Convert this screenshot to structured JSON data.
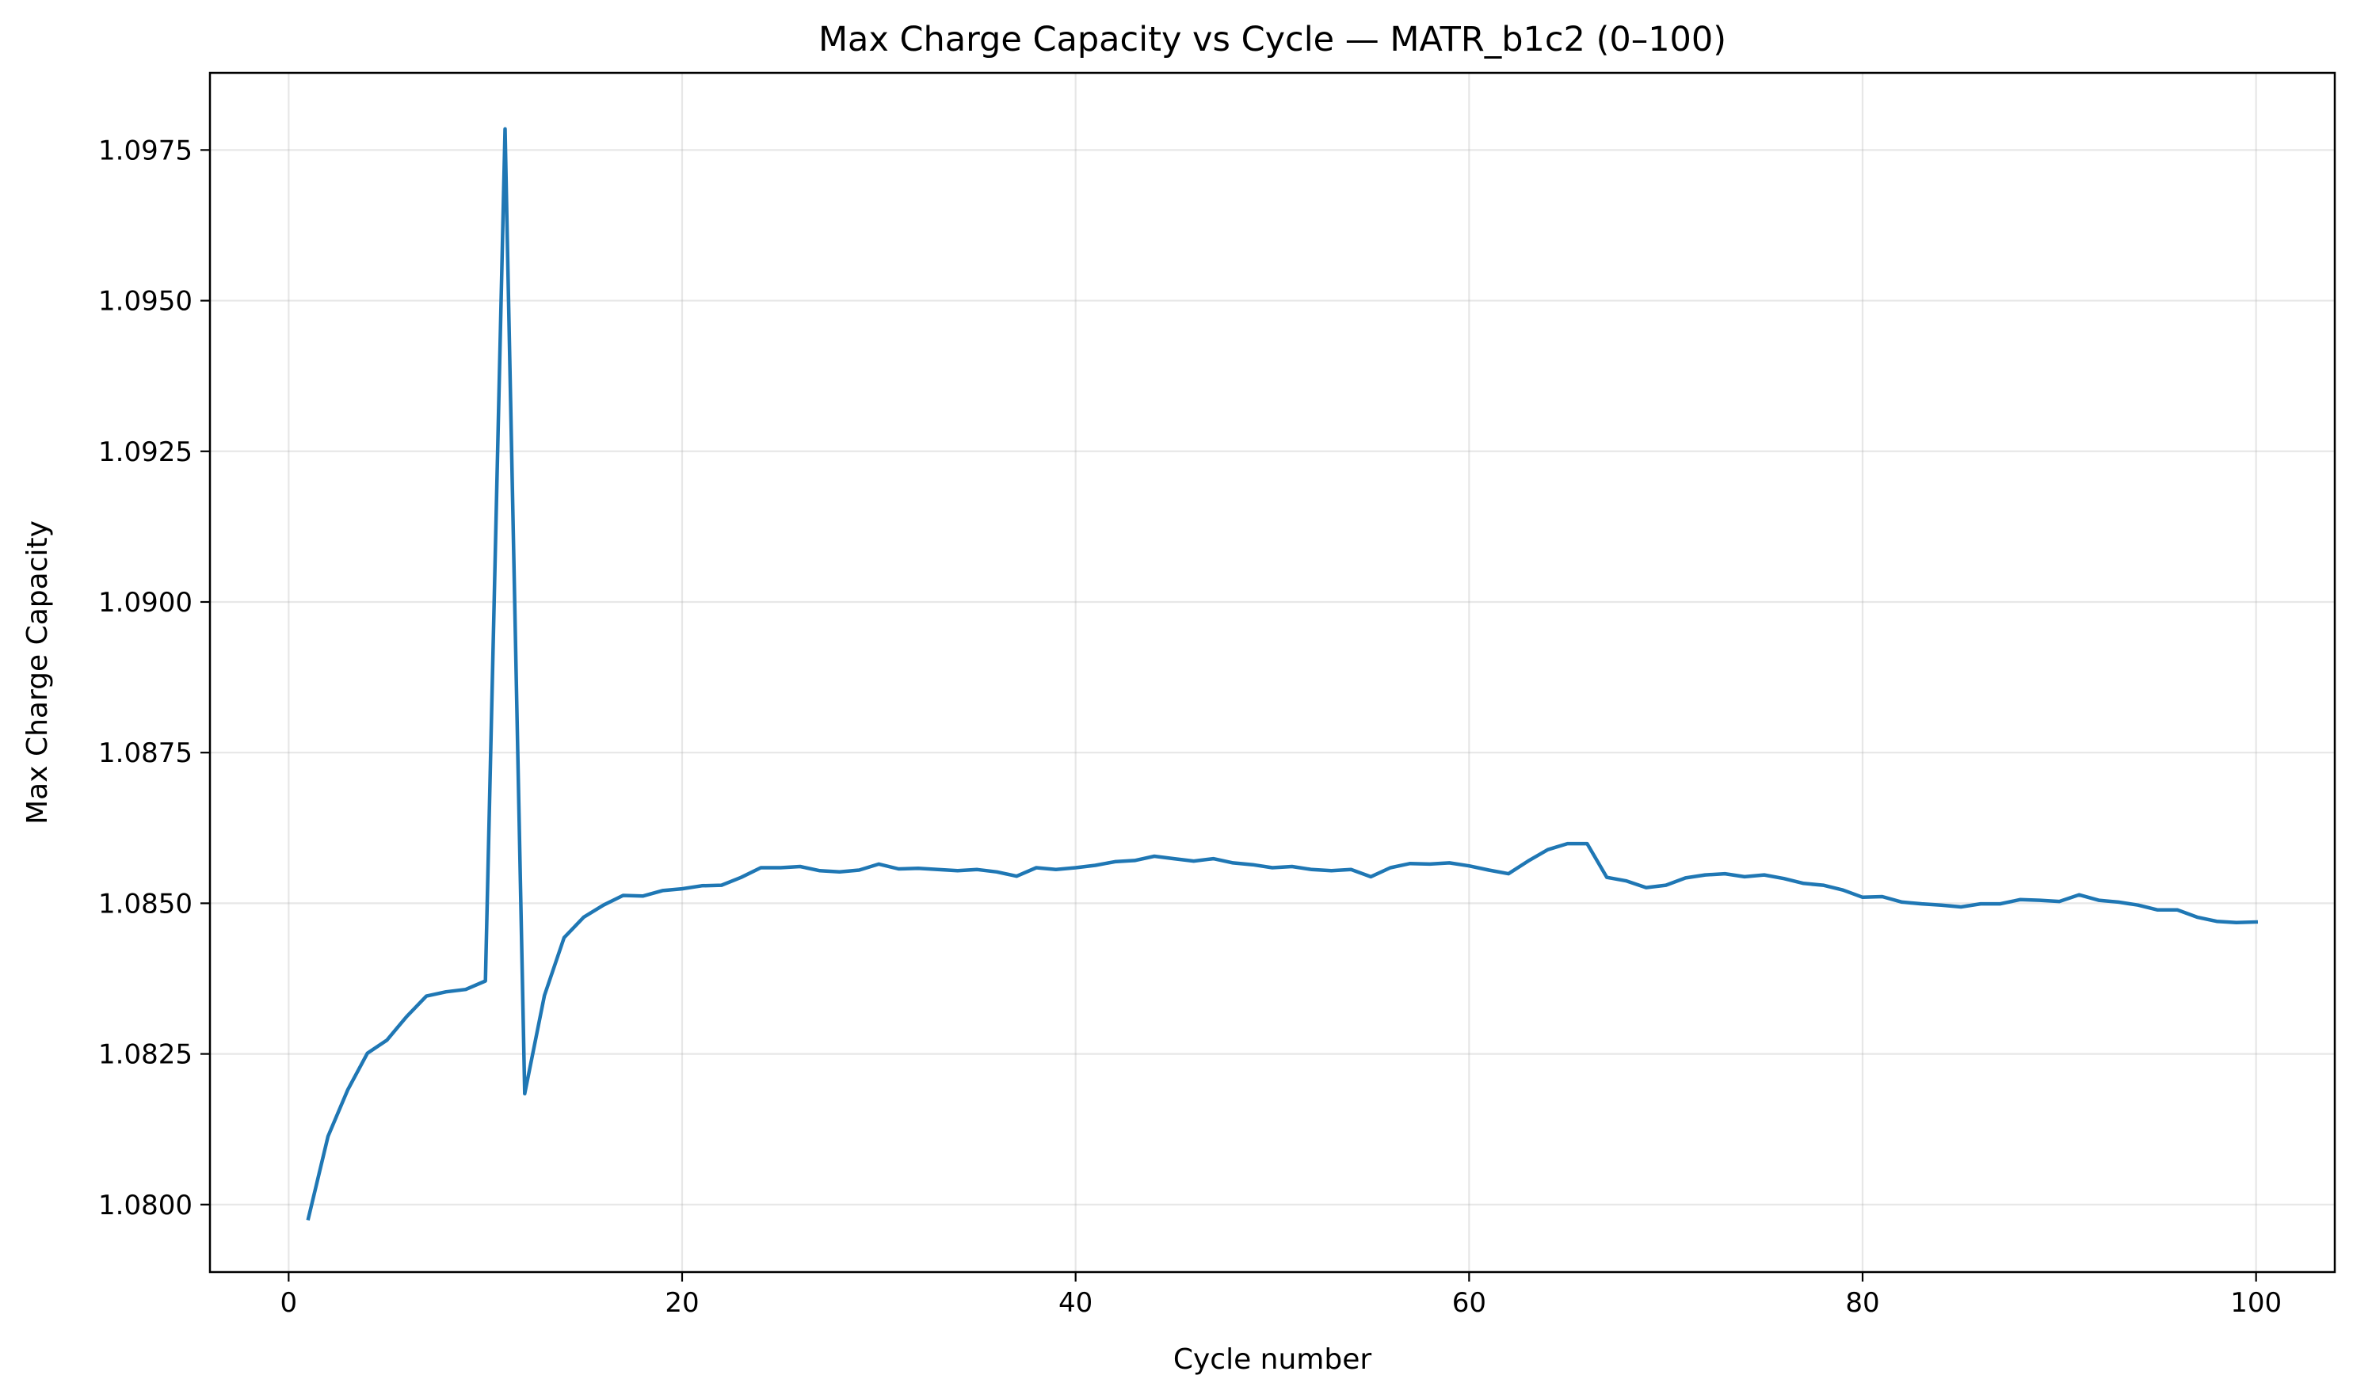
{
  "chart_data": {
    "type": "line",
    "title": "Max Charge Capacity vs Cycle — MATR_b1c2 (0–100)",
    "xlabel": "Cycle number",
    "ylabel": "Max Charge Capacity",
    "xlim": [
      -4,
      104
    ],
    "ylim": [
      1.07888,
      1.09878
    ],
    "xticks": [
      0,
      20,
      40,
      60,
      80,
      100
    ],
    "xtick_labels": [
      "0",
      "20",
      "40",
      "60",
      "80",
      "100"
    ],
    "yticks": [
      1.08,
      1.0825,
      1.085,
      1.0875,
      1.09,
      1.0925,
      1.095,
      1.0975
    ],
    "ytick_labels": [
      "1.0800",
      "1.0825",
      "1.0850",
      "1.0875",
      "1.0900",
      "1.0925",
      "1.0950",
      "1.0975"
    ],
    "grid": true,
    "line_color": "#1f77b4",
    "series": [
      {
        "x": [
          1,
          2,
          3,
          4,
          5,
          6,
          7,
          8,
          9,
          10,
          11,
          12,
          13,
          14,
          15,
          16,
          17,
          18,
          19,
          20,
          21,
          22,
          23,
          24,
          25,
          26,
          27,
          28,
          29,
          30,
          31,
          32,
          33,
          34,
          35,
          36,
          37,
          38,
          39,
          40,
          41,
          42,
          43,
          44,
          45,
          46,
          47,
          48,
          49,
          50,
          51,
          52,
          53,
          54,
          55,
          56,
          57,
          58,
          59,
          60,
          61,
          62,
          63,
          64,
          65,
          66,
          67,
          68,
          69,
          70,
          71,
          72,
          73,
          74,
          75,
          76,
          77,
          78,
          79,
          80,
          81,
          82,
          83,
          84,
          85,
          86,
          87,
          88,
          89,
          90,
          91,
          92,
          93,
          94,
          95,
          96,
          97,
          98,
          99,
          100
        ],
        "values": [
          1.07977,
          1.08113,
          1.0819,
          1.08251,
          1.08273,
          1.08312,
          1.08346,
          1.08353,
          1.08357,
          1.08371,
          1.09785,
          1.08184,
          1.08347,
          1.08443,
          1.08477,
          1.08497,
          1.08513,
          1.08512,
          1.08521,
          1.08524,
          1.08529,
          1.0853,
          1.08543,
          1.08559,
          1.08559,
          1.08561,
          1.08554,
          1.08552,
          1.08555,
          1.08565,
          1.08557,
          1.08558,
          1.08556,
          1.08554,
          1.08556,
          1.08552,
          1.08545,
          1.08559,
          1.08556,
          1.08559,
          1.08563,
          1.08569,
          1.08571,
          1.08578,
          1.08574,
          1.0857,
          1.08574,
          1.08567,
          1.08564,
          1.08559,
          1.08561,
          1.08556,
          1.08554,
          1.08556,
          1.08544,
          1.08559,
          1.08566,
          1.08565,
          1.08567,
          1.08562,
          1.08555,
          1.08549,
          1.0857,
          1.08589,
          1.08599,
          1.08599,
          1.08543,
          1.08537,
          1.08526,
          1.0853,
          1.08542,
          1.08547,
          1.08549,
          1.08544,
          1.08547,
          1.08541,
          1.08533,
          1.0853,
          1.08522,
          1.0851,
          1.08511,
          1.08502,
          1.08499,
          1.08497,
          1.08494,
          1.08499,
          1.08499,
          1.08506,
          1.08505,
          1.08503,
          1.08514,
          1.08505,
          1.08502,
          1.08497,
          1.08489,
          1.08489,
          1.08477,
          1.0847,
          1.08468,
          1.08469
        ]
      }
    ]
  }
}
